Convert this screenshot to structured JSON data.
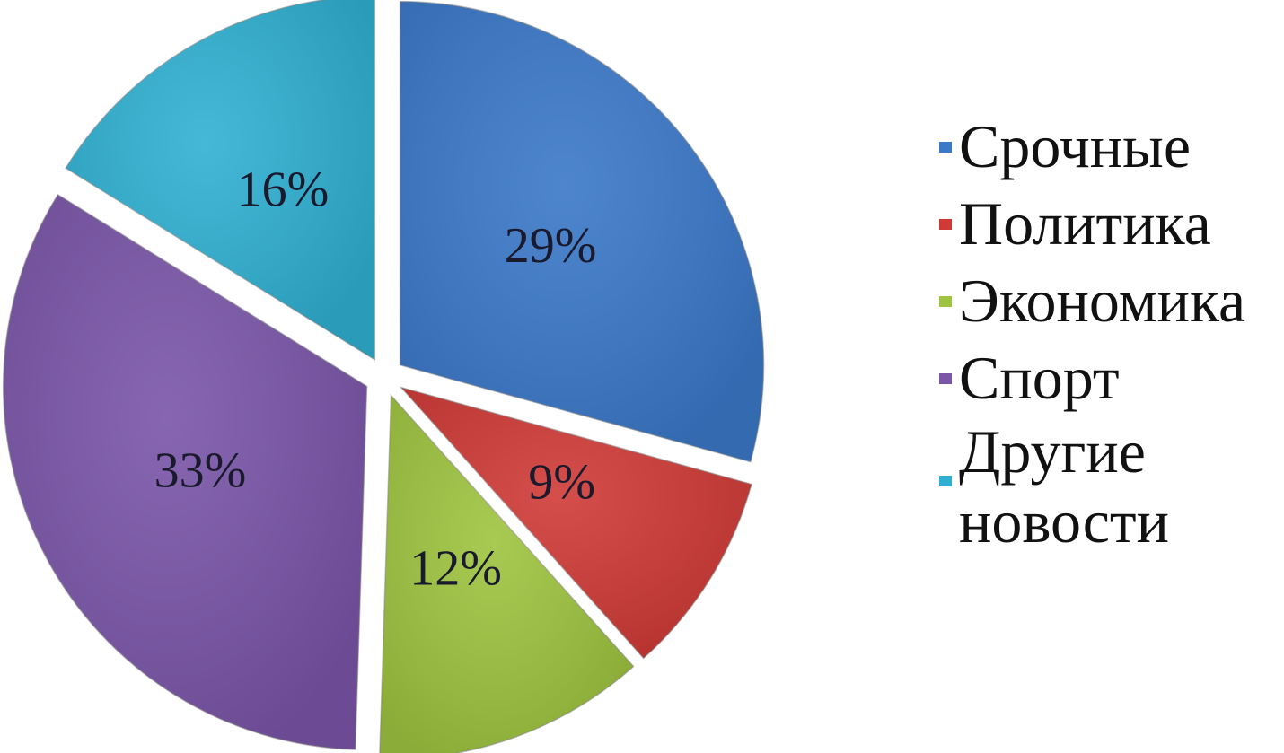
{
  "chart_data": {
    "type": "pie",
    "exploded": true,
    "categories": [
      "Срочные",
      "Политика",
      "Экономика",
      "Спорт",
      "Другие новости"
    ],
    "values": [
      29,
      9,
      12,
      33,
      16
    ],
    "value_labels": [
      "29%",
      "9%",
      "12%",
      "33%",
      "16%"
    ],
    "colors": [
      "#3a78c8",
      "#cf3a36",
      "#9ec43f",
      "#7a55a8",
      "#2fb0d2"
    ],
    "legend_position": "right"
  }
}
